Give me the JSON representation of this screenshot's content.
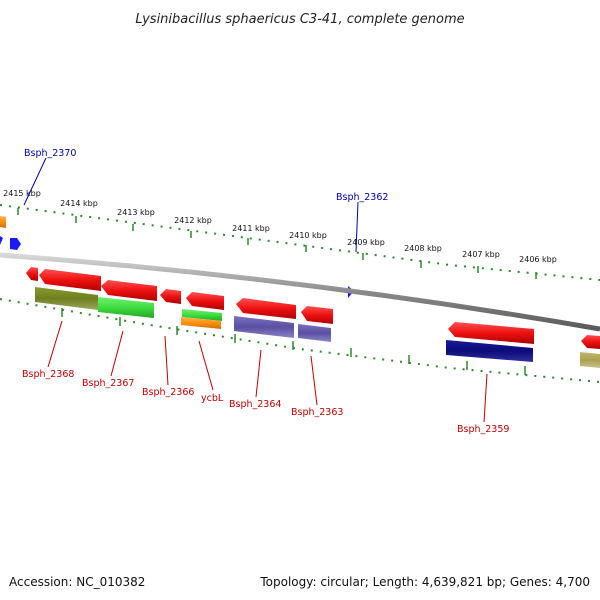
{
  "title": "Lysinibacillus sphaericus C3-41, complete genome",
  "footer": {
    "accession": "Accession: NC_010382",
    "summary": "Topology: circular; Length: 4,639,821 bp; Genes: 4,700"
  },
  "colors": {
    "backbone": "#909090",
    "tick": "#2a8a2a",
    "label_red": "#c00000",
    "label_blue": "#0000b0",
    "red": "#ee1111",
    "olive": "#6f7f1f",
    "green": "#3fdc3f",
    "orange": "#ff9010",
    "slate": "#5a4fa0",
    "navy": "#0b0b7a",
    "khaki": "#aaa050",
    "blue": "#1a1aff"
  },
  "ticks": [
    "2415 kbp",
    "2414 kbp",
    "2413 kbp",
    "2412 kbp",
    "2411 kbp",
    "2410 kbp",
    "2409 kbp",
    "2408 kbp",
    "2407 kbp",
    "2406 kbp"
  ],
  "labels_outer": [
    "Bsph_2370",
    "Bsph_2362"
  ],
  "labels_inner": [
    "Bsph_2368",
    "Bsph_2367",
    "Bsph_2366",
    "ycbL",
    "Bsph_2364",
    "Bsph_2363",
    "Bsph_2359"
  ]
}
